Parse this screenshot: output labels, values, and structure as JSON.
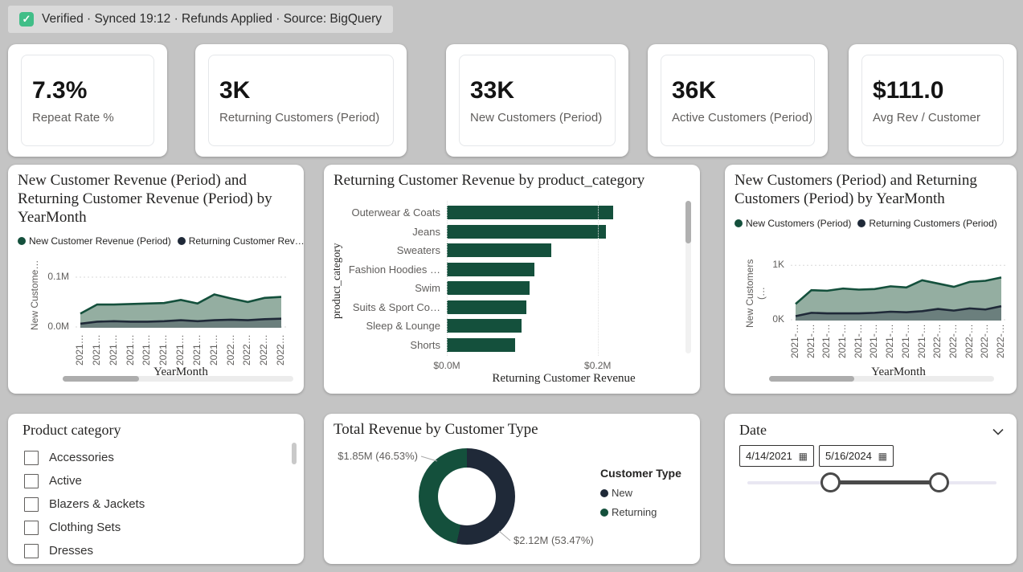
{
  "banner": {
    "icon": "verified-check",
    "text": "Verified · Synced 19:12 · Refunds Applied · Source: BigQuery"
  },
  "icons": {
    "verified_check": "✓",
    "calendar": "▦"
  },
  "colors": {
    "green": "#14503C",
    "navy": "#1F2938",
    "green_fill": "#94AEA1",
    "navy_fill": "rgba(31,41,56,0.35)"
  },
  "kpis": [
    {
      "value": "7.3%",
      "label": "Repeat Rate %"
    },
    {
      "value": "3K",
      "label": "Returning Customers (Period)"
    },
    {
      "value": "33K",
      "label": "New Customers (Period)"
    },
    {
      "value": "36K",
      "label": "Active Customers (Period)"
    },
    {
      "value": "$111.0",
      "label": "Avg Rev / Customer"
    }
  ],
  "chart_data": [
    {
      "type": "area",
      "title": "New Customer Revenue (Period) and Returning Customer Revenue (Period) by YearMonth",
      "xlabel": "YearMonth",
      "ylabel": "New Custome…",
      "ymax": 0.135,
      "yticks": [
        {
          "label": "0.1M",
          "value": 0.1
        },
        {
          "label": "0.0M",
          "value": 0
        }
      ],
      "x": [
        "2021…",
        "2021…",
        "2021…",
        "2021…",
        "2021…",
        "2021…",
        "2021…",
        "2021…",
        "2021…",
        "2022…",
        "2022…",
        "2022…",
        "2022…"
      ],
      "series": [
        {
          "name": "New Customer Revenue (Period)",
          "legend_label": "New Customer Revenue (Period)",
          "color_key": "green",
          "values": [
            0.028,
            0.046,
            0.046,
            0.047,
            0.048,
            0.049,
            0.055,
            0.048,
            0.066,
            0.058,
            0.051,
            0.059,
            0.061
          ]
        },
        {
          "name": "Returning Customer Revenue (Period)",
          "legend_label": "Returning Customer Rev…",
          "color_key": "navy",
          "values": [
            0.008,
            0.012,
            0.013,
            0.012,
            0.012,
            0.013,
            0.015,
            0.013,
            0.015,
            0.016,
            0.015,
            0.017,
            0.018
          ]
        }
      ],
      "scrollbar": {
        "orientation": "horizontal",
        "thumb_pct": 33
      }
    },
    {
      "type": "bar",
      "title": "Returning Customer Revenue by product_category",
      "xlabel": "Returning Customer Revenue",
      "ylabel": "product_category",
      "categories": [
        "Outerwear & Coats",
        "Jeans",
        "Sweaters",
        "Fashion Hoodies …",
        "Swim",
        "Suits & Sport Co…",
        "Sleep & Lounge",
        "Shorts"
      ],
      "values": [
        0.22,
        0.211,
        0.138,
        0.116,
        0.11,
        0.105,
        0.099,
        0.091
      ],
      "xmax": 0.31,
      "xticks": [
        {
          "label": "$0.0M",
          "value": 0
        },
        {
          "label": "$0.2M",
          "value": 0.2
        }
      ],
      "scrollbar": {
        "orientation": "vertical",
        "thumb_pct": 28
      }
    },
    {
      "type": "area",
      "title": "New Customers (Period) and Returning Customers (Period) by YearMonth",
      "xlabel": "YearMonth",
      "ylabel": "New Customers (…",
      "ymax": 1.12,
      "yticks": [
        {
          "label": "1K",
          "value": 1
        },
        {
          "label": "0K",
          "value": 0
        }
      ],
      "x": [
        "2021-…",
        "2021-…",
        "2021-…",
        "2021-…",
        "2021-…",
        "2021-…",
        "2021-…",
        "2021-…",
        "2021-…",
        "2022-…",
        "2022-…",
        "2022-…",
        "2022-…",
        "2022-…"
      ],
      "series": [
        {
          "name": "New Customers (Period)",
          "legend_label": "New Customers (Period)",
          "color_key": "green",
          "values": [
            0.3,
            0.55,
            0.54,
            0.58,
            0.56,
            0.57,
            0.62,
            0.6,
            0.73,
            0.67,
            0.61,
            0.7,
            0.72,
            0.78
          ]
        },
        {
          "name": "Returning Customers (Period)",
          "legend_label": "Returning Customers (Period)",
          "color_key": "navy",
          "values": [
            0.08,
            0.14,
            0.13,
            0.13,
            0.13,
            0.14,
            0.16,
            0.15,
            0.17,
            0.21,
            0.18,
            0.22,
            0.2,
            0.26
          ]
        }
      ],
      "scrollbar": {
        "orientation": "horizontal",
        "thumb_pct": 38
      }
    },
    {
      "type": "donut",
      "title": "Total Revenue by Customer Type",
      "legend_title": "Customer Type",
      "slices": [
        {
          "name": "New",
          "label": "$2.12M (53.47%)",
          "pct": 53.47,
          "color_key": "navy"
        },
        {
          "name": "Returning",
          "label": "$1.85M (46.53%)",
          "pct": 46.53,
          "color_key": "green"
        }
      ]
    }
  ],
  "slicers": {
    "product_category": {
      "title": "Product category",
      "items": [
        {
          "label": "Accessories",
          "checked": false
        },
        {
          "label": "Active",
          "checked": false
        },
        {
          "label": "Blazers & Jackets",
          "checked": false
        },
        {
          "label": "Clothing Sets",
          "checked": false
        },
        {
          "label": "Dresses",
          "checked": false
        }
      ]
    },
    "date": {
      "title": "Date",
      "start_value": "4/14/2021",
      "end_value": "5/16/2024"
    }
  }
}
